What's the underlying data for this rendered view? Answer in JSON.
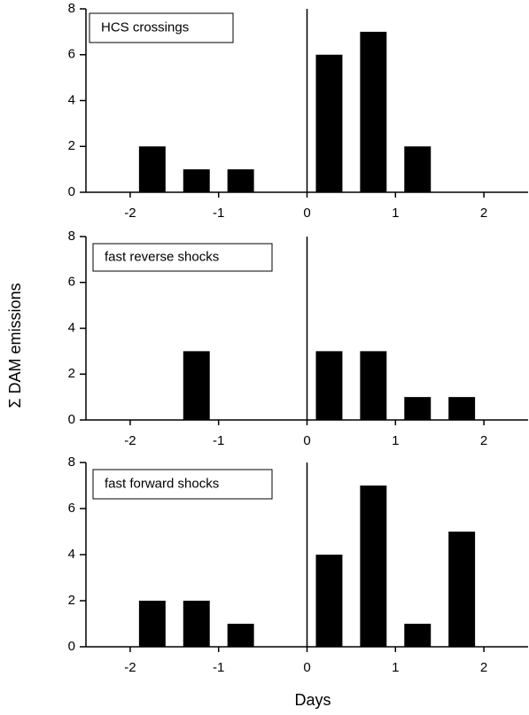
{
  "chart_data": [
    {
      "type": "bar",
      "annotation": "HCS crossings",
      "color": "#000000",
      "vline": 0,
      "x": [
        -1.75,
        -1.25,
        -0.75,
        0.25,
        0.75,
        1.25
      ],
      "values": [
        2,
        1,
        1,
        6,
        7,
        2
      ],
      "xlim": [
        -2.5,
        2.5
      ],
      "xticks": [
        -2,
        -1,
        0,
        1,
        2
      ],
      "ylim": [
        0,
        8
      ],
      "yticks": [
        0,
        2,
        4,
        6,
        8
      ]
    },
    {
      "type": "bar",
      "annotation": "fast reverse shocks",
      "color": "#000000",
      "vline": 0,
      "ylabel": "Σ DAM emissions",
      "x": [
        -1.25,
        0.25,
        0.75,
        1.25,
        1.75
      ],
      "values": [
        3,
        3,
        3,
        1,
        1
      ],
      "xlim": [
        -2.5,
        2.5
      ],
      "xticks": [
        -2,
        -1,
        0,
        1,
        2
      ],
      "ylim": [
        0,
        8
      ],
      "yticks": [
        0,
        2,
        4,
        6,
        8
      ]
    },
    {
      "type": "bar",
      "annotation": "fast forward shocks",
      "color": "#000000",
      "vline": 0,
      "xlabel": "Days",
      "x": [
        -1.75,
        -1.25,
        -0.75,
        0.25,
        0.75,
        1.25,
        1.75
      ],
      "values": [
        2,
        2,
        1,
        4,
        7,
        1,
        5
      ],
      "xlim": [
        -2.5,
        2.5
      ],
      "xticks": [
        -2,
        -1,
        0,
        1,
        2
      ],
      "ylim": [
        0,
        8
      ],
      "yticks": [
        0,
        2,
        4,
        6,
        8
      ]
    }
  ]
}
